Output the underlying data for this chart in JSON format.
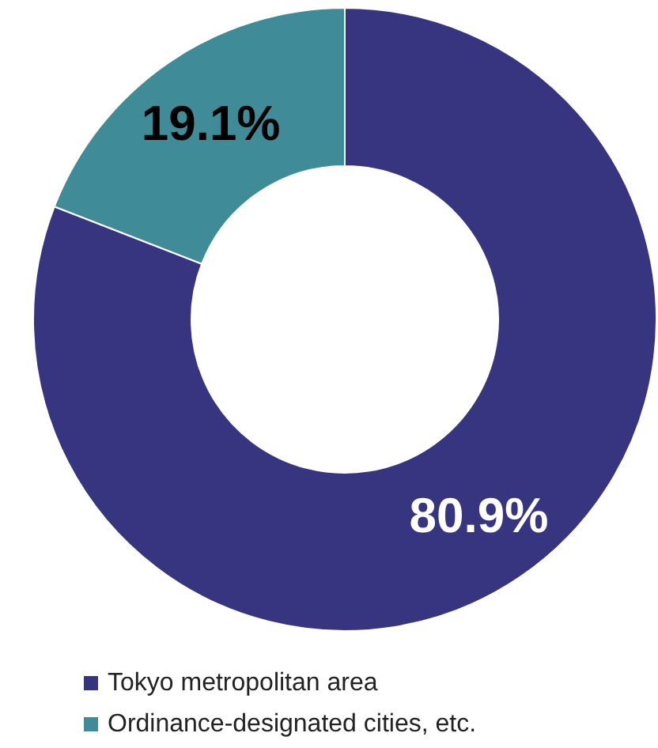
{
  "chart_data": {
    "type": "donut",
    "categories": [
      "Tokyo metropolitan area",
      "Ordinance-designated cities, etc."
    ],
    "values": [
      80.9,
      19.1
    ],
    "colors": [
      "#37357f",
      "#3f8c98"
    ],
    "value_labels": [
      "80.9%",
      "19.1%"
    ],
    "legend": "bottom"
  }
}
